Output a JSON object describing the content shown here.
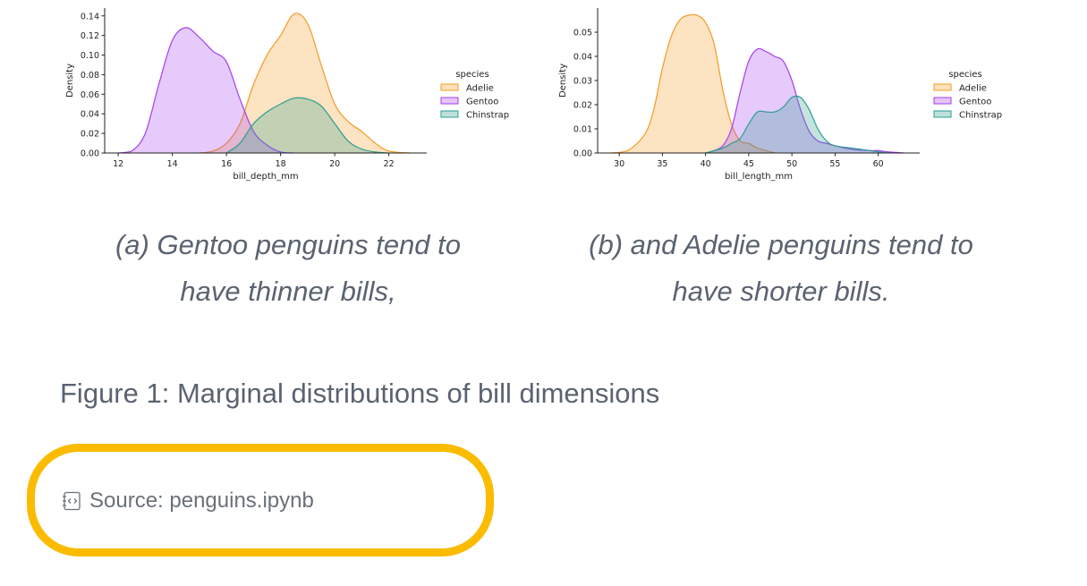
{
  "chart_data": [
    {
      "type": "area",
      "subtype": "kde",
      "xlabel": "bill_depth_mm",
      "ylabel": "Density",
      "xlim": [
        11.5,
        23.4
      ],
      "ylim": [
        0,
        0.148
      ],
      "xticks": [
        12,
        14,
        16,
        18,
        20,
        22
      ],
      "yticks": [
        "0.00",
        "0.02",
        "0.04",
        "0.06",
        "0.08",
        "0.10",
        "0.12",
        "0.14"
      ],
      "legend_title": "species",
      "legend_placement": "right",
      "grid": false,
      "series": [
        {
          "name": "Adelie",
          "color": "#f59a23",
          "points": [
            [
              15,
              0
            ],
            [
              15.5,
              0.002
            ],
            [
              16,
              0.01
            ],
            [
              16.5,
              0.03
            ],
            [
              17,
              0.07
            ],
            [
              17.5,
              0.1
            ],
            [
              18,
              0.12
            ],
            [
              18.5,
              0.142
            ],
            [
              19,
              0.132
            ],
            [
              19.5,
              0.09
            ],
            [
              20,
              0.05
            ],
            [
              20.5,
              0.032
            ],
            [
              21,
              0.022
            ],
            [
              21.5,
              0.01
            ],
            [
              22,
              0.002
            ],
            [
              22.8,
              0
            ]
          ]
        },
        {
          "name": "Gentoo",
          "color": "#a43ff0",
          "points": [
            [
              12,
              0
            ],
            [
              12.5,
              0.002
            ],
            [
              13,
              0.02
            ],
            [
              13.5,
              0.07
            ],
            [
              14,
              0.115
            ],
            [
              14.5,
              0.128
            ],
            [
              15,
              0.118
            ],
            [
              15.5,
              0.104
            ],
            [
              16,
              0.093
            ],
            [
              16.5,
              0.055
            ],
            [
              17,
              0.022
            ],
            [
              17.5,
              0.008
            ],
            [
              18,
              0.001
            ],
            [
              18.5,
              0
            ]
          ]
        },
        {
          "name": "Chinstrap",
          "color": "#2a9d8f",
          "points": [
            [
              16,
              0
            ],
            [
              16.5,
              0.01
            ],
            [
              17,
              0.03
            ],
            [
              17.5,
              0.042
            ],
            [
              18,
              0.05
            ],
            [
              18.5,
              0.056
            ],
            [
              19,
              0.055
            ],
            [
              19.5,
              0.048
            ],
            [
              20,
              0.03
            ],
            [
              20.5,
              0.012
            ],
            [
              21,
              0.004
            ],
            [
              21.5,
              0.001
            ],
            [
              22,
              0
            ]
          ]
        }
      ]
    },
    {
      "type": "area",
      "subtype": "kde",
      "xlabel": "bill_length_mm",
      "ylabel": "Density",
      "xlim": [
        27.5,
        64.8
      ],
      "ylim": [
        0,
        0.06
      ],
      "xticks": [
        30,
        35,
        40,
        45,
        50,
        55,
        60
      ],
      "yticks": [
        "0.00",
        "0.01",
        "0.02",
        "0.03",
        "0.04",
        "0.05"
      ],
      "legend_title": "species",
      "legend_placement": "right",
      "grid": false,
      "series": [
        {
          "name": "Adelie",
          "color": "#f59a23",
          "points": [
            [
              29,
              0
            ],
            [
              31,
              0.001
            ],
            [
              33,
              0.008
            ],
            [
              34,
              0.018
            ],
            [
              35,
              0.035
            ],
            [
              36,
              0.048
            ],
            [
              37,
              0.055
            ],
            [
              38,
              0.057
            ],
            [
              39,
              0.057
            ],
            [
              40,
              0.054
            ],
            [
              41,
              0.045
            ],
            [
              42,
              0.026
            ],
            [
              43,
              0.012
            ],
            [
              44,
              0.005
            ],
            [
              45,
              0.004
            ],
            [
              46,
              0.002
            ],
            [
              47,
              0.001
            ],
            [
              48,
              0
            ]
          ]
        },
        {
          "name": "Gentoo",
          "color": "#a43ff0",
          "points": [
            [
              40,
              0
            ],
            [
              41,
              0.001
            ],
            [
              42,
              0.003
            ],
            [
              43,
              0.01
            ],
            [
              44,
              0.025
            ],
            [
              45,
              0.038
            ],
            [
              46,
              0.043
            ],
            [
              47,
              0.042
            ],
            [
              48,
              0.04
            ],
            [
              49,
              0.038
            ],
            [
              50,
              0.03
            ],
            [
              51,
              0.018
            ],
            [
              52,
              0.009
            ],
            [
              53,
              0.005
            ],
            [
              54,
              0.004
            ],
            [
              55,
              0.003
            ],
            [
              57,
              0.0015
            ],
            [
              59,
              0.001
            ],
            [
              60,
              0.001
            ],
            [
              61,
              0.0005
            ],
            [
              63,
              0
            ]
          ]
        },
        {
          "name": "Chinstrap",
          "color": "#2a9d8f",
          "points": [
            [
              40,
              0
            ],
            [
              42,
              0.002
            ],
            [
              43,
              0.004
            ],
            [
              44,
              0.006
            ],
            [
              45,
              0.012
            ],
            [
              46,
              0.017
            ],
            [
              47,
              0.017
            ],
            [
              48,
              0.017
            ],
            [
              49,
              0.019
            ],
            [
              50,
              0.023
            ],
            [
              51,
              0.023
            ],
            [
              52,
              0.018
            ],
            [
              53,
              0.01
            ],
            [
              54,
              0.005
            ],
            [
              55,
              0.003
            ],
            [
              57,
              0.002
            ],
            [
              59,
              0.001
            ],
            [
              61,
              0
            ]
          ]
        }
      ]
    }
  ],
  "captions": {
    "a_line1": "(a) Gentoo penguins tend to",
    "a_line2": "have thinner bills,",
    "b_line1": "(b) and Adelie penguins tend to",
    "b_line2": "have shorter bills.",
    "figure": "Figure 1: Marginal distributions of bill dimensions"
  },
  "source": {
    "icon": "notebook-code-icon",
    "label": "Source: penguins.ipynb",
    "highlight_color": "#fbbb00"
  }
}
